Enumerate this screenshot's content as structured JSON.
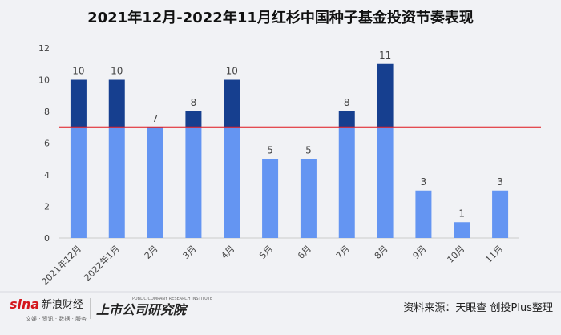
{
  "chart_data": {
    "type": "bar",
    "title": "2021年12月-2022年11月红杉中国种子基金投资节奏表现",
    "categories": [
      "2021年12月",
      "2022年1月",
      "2月",
      "3月",
      "4月",
      "5月",
      "6月",
      "7月",
      "8月",
      "9月",
      "10月",
      "11月"
    ],
    "values": [
      10,
      10,
      7,
      8,
      10,
      5,
      5,
      8,
      11,
      3,
      1,
      3
    ],
    "color": "#6495f2",
    "color_above": "#163f8f",
    "threshold": 7,
    "threshold_color": "#e0151b",
    "ylim": [
      0,
      12
    ],
    "yticks": [
      0,
      2,
      4,
      6,
      8,
      10,
      12
    ],
    "grid": false
  },
  "footer": {
    "brand": "新浪财经",
    "brand_logo": "sina",
    "brand_sub": "文娱 · 资讯 · 数据 · 服务",
    "institute": "上市公司研究院",
    "institute_en": "PUBLIC COMPANY RESEARCH INSTITUTE",
    "source": "资料来源：天眼查 创投Plus整理"
  }
}
